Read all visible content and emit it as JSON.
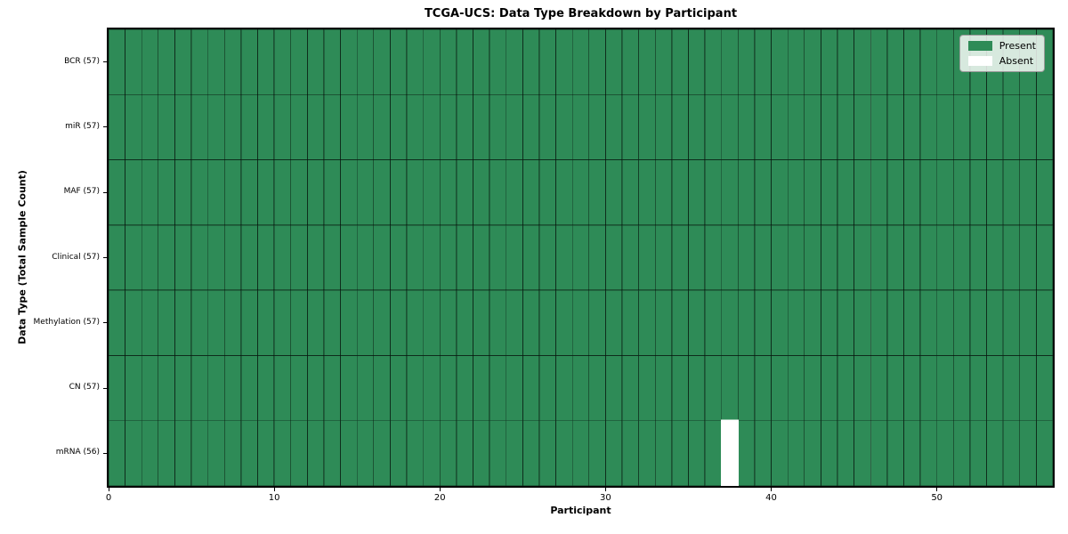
{
  "chart_data": {
    "type": "heatmap",
    "title": "TCGA-UCS: Data Type Breakdown by Participant",
    "xlabel": "Participant",
    "ylabel": "Data Type (Total Sample Count)",
    "xlim": [
      0,
      57
    ],
    "n_participants": 57,
    "x_ticks": [
      0,
      10,
      20,
      30,
      40,
      50
    ],
    "rows": [
      {
        "label": "BCR (57)",
        "data_type": "BCR",
        "total_samples": 57,
        "absent_participants": []
      },
      {
        "label": "miR (57)",
        "data_type": "miR",
        "total_samples": 57,
        "absent_participants": []
      },
      {
        "label": "MAF (57)",
        "data_type": "MAF",
        "total_samples": 57,
        "absent_participants": []
      },
      {
        "label": "Clinical (57)",
        "data_type": "Clinical",
        "total_samples": 57,
        "absent_participants": []
      },
      {
        "label": "Methylation (57)",
        "data_type": "Methylation",
        "total_samples": 57,
        "absent_participants": []
      },
      {
        "label": "CN (57)",
        "data_type": "CN",
        "total_samples": 57,
        "absent_participants": []
      },
      {
        "label": "mRNA (56)",
        "data_type": "mRNA",
        "total_samples": 56,
        "absent_participants": [
          37
        ]
      }
    ],
    "legend": {
      "position": "upper-right",
      "entries": [
        {
          "label": "Present",
          "color": "#2e8b57"
        },
        {
          "label": "Absent",
          "color": "#ffffff"
        }
      ]
    },
    "colors": {
      "present": "#2e8b57",
      "absent": "#ffffff",
      "cell_edge": "rgba(0,0,0,0.55)",
      "spine": "#000000"
    }
  }
}
